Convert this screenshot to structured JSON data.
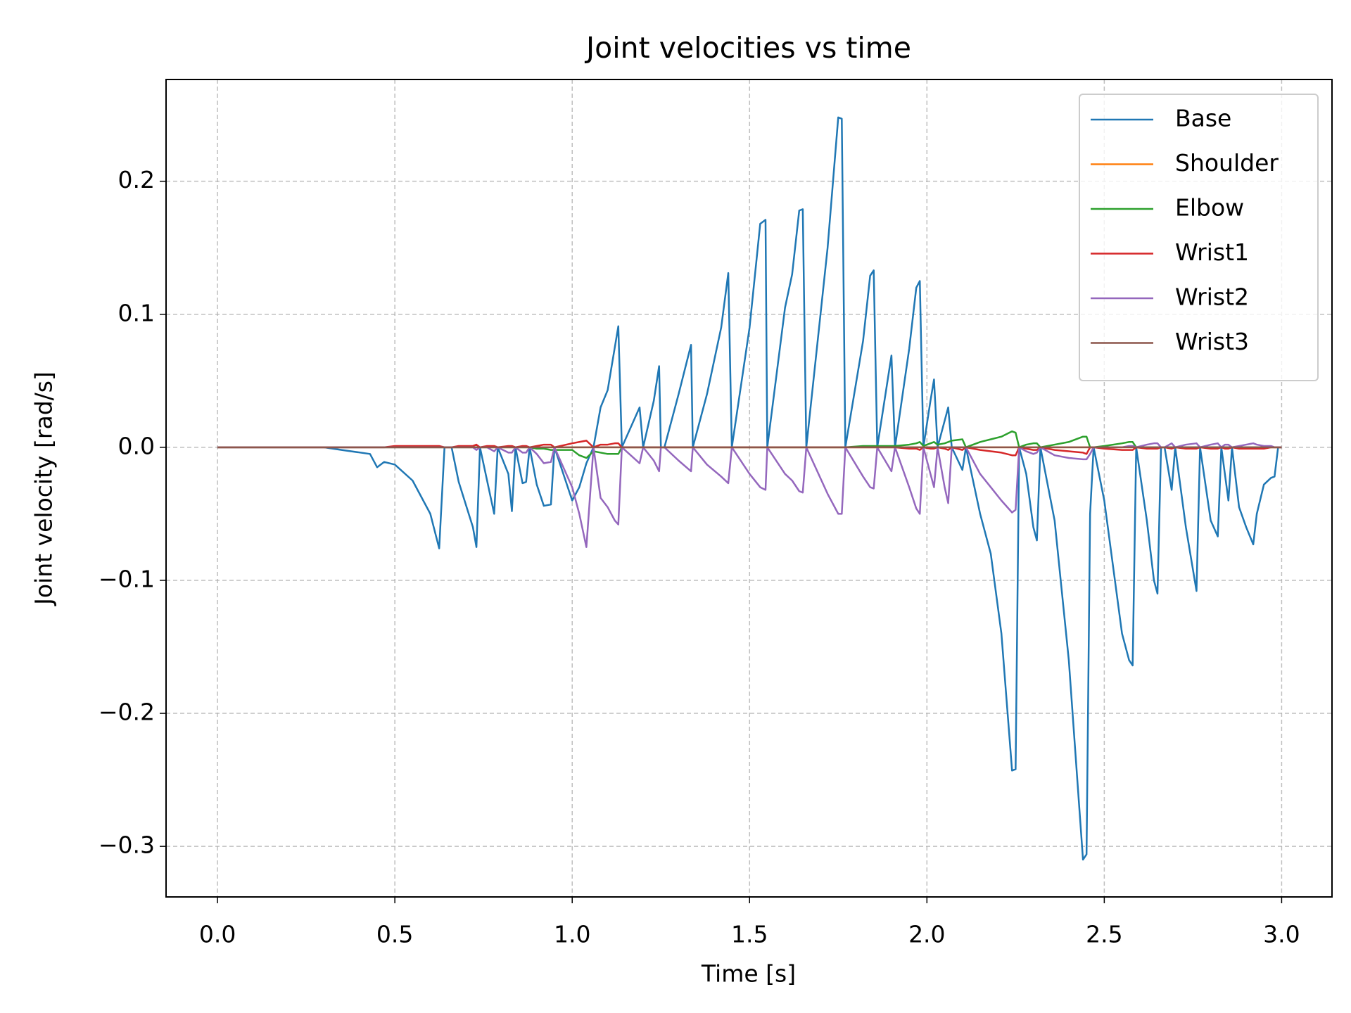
{
  "chart_data": {
    "type": "line",
    "title": "Joint velocities vs time",
    "x_label": "Time [s]",
    "y_label": "Joint velocity [rad/s]",
    "xlim": [
      -0.145,
      3.142
    ],
    "ylim": [
      -0.338,
      0.2765
    ],
    "xticks": [
      {
        "value": 0,
        "label": "0.0"
      },
      0.5,
      {
        "value": 1,
        "label": "1.0"
      },
      1.5,
      {
        "value": 2,
        "label": "2.0"
      },
      2.5,
      {
        "value": 3,
        "label": "3.0"
      }
    ],
    "yticks": [
      {
        "value": -0.3,
        "label": "−0.3"
      },
      {
        "value": -0.2,
        "label": "−0.2"
      },
      {
        "value": -0.1,
        "label": "−0.1"
      },
      {
        "value": 0,
        "label": "0.0"
      },
      0.1,
      0.2
    ],
    "grid": true,
    "legend": "upper right",
    "x": [
      0,
      0.3,
      0.35,
      0.43,
      0.45,
      0.47,
      0.5,
      0.55,
      0.6,
      0.625,
      0.64,
      0.66,
      0.68,
      0.72,
      0.73,
      0.74,
      0.76,
      0.78,
      0.79,
      0.82,
      0.83,
      0.84,
      0.86,
      0.87,
      0.88,
      0.9,
      0.92,
      0.94,
      0.95,
      1.0,
      1.02,
      1.04,
      1.06,
      1.08,
      1.1,
      1.12,
      1.13,
      1.14,
      1.19,
      1.2,
      1.23,
      1.245,
      1.25,
      1.26,
      1.3,
      1.335,
      1.34,
      1.38,
      1.42,
      1.44,
      1.45,
      1.5,
      1.53,
      1.545,
      1.55,
      1.6,
      1.62,
      1.64,
      1.65,
      1.66,
      1.72,
      1.75,
      1.76,
      1.77,
      1.82,
      1.84,
      1.85,
      1.86,
      1.9,
      1.91,
      1.95,
      1.97,
      1.98,
      1.99,
      2.01,
      2.02,
      2.03,
      2.05,
      2.06,
      2.07,
      2.1,
      2.11,
      2.15,
      2.18,
      2.21,
      2.24,
      2.25,
      2.26,
      2.28,
      2.3,
      2.31,
      2.32,
      2.36,
      2.4,
      2.44,
      2.45,
      2.46,
      2.47,
      2.5,
      2.55,
      2.57,
      2.58,
      2.59,
      2.62,
      2.64,
      2.65,
      2.66,
      2.67,
      2.69,
      2.7,
      2.73,
      2.76,
      2.77,
      2.8,
      2.82,
      2.83,
      2.84,
      2.85,
      2.86,
      2.88,
      2.9,
      2.92,
      2.93,
      2.95,
      2.97,
      2.98,
      2.99,
      3.0
    ],
    "series": [
      {
        "name": "Base",
        "color": "#1f77b4",
        "values": [
          0,
          0,
          -0.002,
          -0.005,
          -0.015,
          -0.011,
          -0.013,
          -0.025,
          -0.05,
          -0.076,
          0,
          0,
          -0.026,
          -0.06,
          -0.075,
          0,
          -0.025,
          -0.05,
          0,
          -0.02,
          -0.048,
          0,
          -0.027,
          -0.026,
          0,
          -0.028,
          -0.044,
          -0.043,
          0,
          -0.04,
          -0.03,
          -0.012,
          0,
          0.03,
          0.043,
          0.075,
          0.091,
          0,
          0.03,
          0,
          0.035,
          0.061,
          0,
          0,
          0.04,
          0.077,
          0,
          0.04,
          0.09,
          0.131,
          0,
          0.09,
          0.168,
          0.171,
          0,
          0.105,
          0.13,
          0.178,
          0.179,
          0,
          0.15,
          0.248,
          0.247,
          0,
          0.08,
          0.129,
          0.133,
          0,
          0.069,
          0,
          0.074,
          0.12,
          0.125,
          0,
          0.035,
          0.051,
          0,
          0.02,
          0.03,
          0,
          -0.017,
          0,
          -0.05,
          -0.08,
          -0.14,
          -0.243,
          -0.242,
          0,
          -0.02,
          -0.06,
          -0.07,
          0,
          -0.055,
          -0.16,
          -0.31,
          -0.306,
          -0.05,
          0,
          -0.04,
          -0.14,
          -0.16,
          -0.164,
          0,
          -0.055,
          -0.1,
          -0.11,
          0,
          0,
          -0.032,
          0,
          -0.06,
          -0.108,
          0,
          -0.055,
          -0.067,
          0,
          -0.02,
          -0.04,
          0,
          -0.045,
          -0.06,
          -0.073,
          -0.05,
          -0.028,
          -0.023,
          -0.022,
          0,
          0
        ]
      },
      {
        "name": "Shoulder",
        "color": "#ff7f0e",
        "values": [
          0,
          0,
          0,
          0,
          0,
          0,
          0,
          0,
          0,
          0,
          0,
          0,
          0,
          0,
          0,
          0,
          0,
          0,
          0,
          0,
          0,
          0,
          0,
          0,
          0,
          0,
          0,
          0,
          0,
          0,
          0,
          0,
          0,
          0,
          0,
          0,
          0,
          0,
          0,
          0,
          0,
          0,
          0,
          0,
          0,
          0,
          0,
          0,
          0,
          0,
          0,
          0,
          0,
          0,
          0,
          0,
          0,
          0,
          0,
          0,
          0,
          0,
          0,
          0,
          0,
          0,
          0,
          0,
          0,
          0,
          0,
          0,
          0,
          0,
          0,
          0,
          0,
          0,
          0,
          0,
          0,
          0,
          0,
          0,
          0,
          0,
          0,
          0,
          0,
          0,
          0,
          0,
          0,
          0,
          0,
          0,
          0,
          0,
          0,
          0,
          0,
          0,
          0,
          0,
          0,
          0,
          0,
          0,
          0,
          0,
          0,
          0,
          0,
          0,
          0,
          0,
          0,
          0,
          0,
          0,
          0,
          0,
          0,
          0,
          0,
          0,
          0,
          0
        ]
      },
      {
        "name": "Elbow",
        "color": "#2ca02c",
        "values": [
          0,
          0,
          0,
          0,
          0,
          0,
          0,
          0,
          0,
          0,
          0,
          0,
          0,
          0,
          0,
          0,
          0,
          0,
          0,
          0,
          0,
          0,
          0,
          0,
          0,
          -0.001,
          -0.001,
          -0.002,
          -0.002,
          -0.002,
          -0.006,
          -0.008,
          -0.003,
          -0.004,
          -0.005,
          -0.005,
          -0.005,
          0,
          0,
          0,
          0,
          0,
          0,
          0,
          0,
          0,
          0,
          0,
          0,
          0,
          0,
          0,
          0,
          0,
          0,
          0,
          0,
          0,
          0,
          0,
          0,
          0,
          0,
          0,
          0.001,
          0.001,
          0.001,
          0.001,
          0.001,
          0.001,
          0.002,
          0.003,
          0.004,
          0.001,
          0.003,
          0.004,
          0.002,
          0.003,
          0.004,
          0.005,
          0.006,
          0,
          0.004,
          0.006,
          0.008,
          0.012,
          0.011,
          0,
          0.002,
          0.003,
          0.003,
          0,
          0.002,
          0.004,
          0.008,
          0.008,
          0,
          0,
          0.001,
          0.003,
          0.004,
          0.004,
          0,
          0,
          0,
          0,
          0,
          0,
          0,
          0,
          0,
          0,
          0,
          0,
          0,
          0,
          0,
          0,
          0,
          0,
          0,
          0,
          0,
          0,
          0,
          0,
          0,
          0
        ]
      },
      {
        "name": "Wrist1",
        "color": "#d62728",
        "values": [
          0,
          0,
          0,
          0,
          0,
          0,
          0.001,
          0.001,
          0.001,
          0.001,
          0,
          0,
          0.001,
          0.001,
          0.002,
          0,
          0.001,
          0.001,
          0,
          0.001,
          0.001,
          0,
          0.001,
          0.001,
          0,
          0.001,
          0.002,
          0.002,
          0,
          0.003,
          0.004,
          0.005,
          0,
          0.002,
          0.002,
          0.003,
          0.003,
          0,
          0,
          0,
          0,
          0,
          0,
          0,
          0,
          0,
          0,
          0,
          0,
          0,
          0,
          0,
          0,
          0,
          0,
          0,
          0,
          0,
          0,
          0,
          0,
          0,
          0,
          0,
          0,
          0,
          0,
          0,
          0,
          0,
          -0.001,
          -0.001,
          -0.002,
          0,
          -0.001,
          -0.001,
          0,
          -0.001,
          -0.002,
          0,
          -0.002,
          0,
          -0.002,
          -0.003,
          -0.004,
          -0.006,
          -0.006,
          0,
          -0.001,
          -0.002,
          -0.002,
          0,
          -0.002,
          -0.003,
          -0.004,
          -0.005,
          0,
          0,
          -0.001,
          -0.002,
          -0.002,
          -0.002,
          0,
          -0.001,
          -0.001,
          -0.001,
          0,
          0,
          -0.001,
          0,
          -0.001,
          -0.001,
          0,
          -0.001,
          -0.001,
          0,
          -0.001,
          -0.001,
          0,
          -0.001,
          -0.001,
          -0.001,
          -0.001,
          -0.001,
          0,
          0,
          0,
          0
        ]
      },
      {
        "name": "Wrist2",
        "color": "#9467bd",
        "values": [
          0,
          0,
          0,
          0,
          0,
          0,
          0,
          0,
          0,
          0,
          0,
          0,
          0,
          0,
          -0.002,
          0,
          0,
          -0.003,
          0,
          -0.004,
          -0.004,
          0,
          -0.004,
          -0.004,
          0,
          -0.005,
          -0.012,
          -0.011,
          0,
          -0.03,
          -0.05,
          -0.075,
          0,
          -0.038,
          -0.045,
          -0.055,
          -0.058,
          0,
          -0.012,
          0,
          -0.01,
          -0.018,
          0,
          0,
          -0.01,
          -0.018,
          0,
          -0.013,
          -0.022,
          -0.027,
          0,
          -0.02,
          -0.03,
          -0.032,
          0,
          -0.02,
          -0.025,
          -0.033,
          -0.034,
          0,
          -0.035,
          -0.05,
          -0.05,
          0,
          -0.022,
          -0.03,
          -0.031,
          0,
          -0.018,
          0,
          -0.03,
          -0.046,
          -0.05,
          0,
          -0.02,
          -0.03,
          0,
          -0.03,
          -0.042,
          0,
          0,
          0,
          -0.02,
          -0.03,
          -0.04,
          -0.049,
          -0.047,
          0,
          -0.003,
          -0.005,
          -0.004,
          0,
          -0.006,
          -0.008,
          -0.009,
          -0.009,
          -0.005,
          0,
          0,
          0,
          0.001,
          0.001,
          0,
          0.002,
          0.003,
          0.003,
          0,
          0,
          0.003,
          0,
          0.002,
          0.003,
          0,
          0.002,
          0.003,
          0,
          0.002,
          0.002,
          0,
          0.001,
          0.002,
          0.003,
          0.002,
          0.001,
          0.001,
          0,
          0,
          0
        ]
      },
      {
        "name": "Wrist3",
        "color": "#8c564b",
        "values": [
          0,
          0,
          0,
          0,
          0,
          0,
          0,
          0,
          0,
          0,
          0,
          0,
          0,
          0,
          0,
          0,
          0,
          0,
          0,
          0,
          0,
          0,
          0,
          0,
          0,
          0,
          0,
          0,
          0,
          0,
          0,
          0,
          0,
          0,
          0,
          0,
          0,
          0,
          0,
          0,
          0,
          0,
          0,
          0,
          0,
          0,
          0,
          0,
          0,
          0,
          0,
          0,
          0,
          0,
          0,
          0,
          0,
          0,
          0,
          0,
          0,
          0,
          0,
          0,
          0,
          0,
          0,
          0,
          0,
          0,
          0,
          0,
          0,
          0,
          0,
          0,
          0,
          0,
          0,
          0,
          0,
          0,
          0,
          0,
          0,
          0,
          0,
          0,
          0,
          0,
          0,
          0,
          0,
          0,
          0,
          0,
          0,
          0,
          0,
          0,
          0,
          0,
          0,
          0,
          0,
          0,
          0,
          0,
          0,
          0,
          0,
          0,
          0,
          0,
          0,
          0,
          0,
          0,
          0,
          0,
          0,
          0,
          0,
          0,
          0,
          0,
          0,
          0
        ]
      }
    ]
  }
}
